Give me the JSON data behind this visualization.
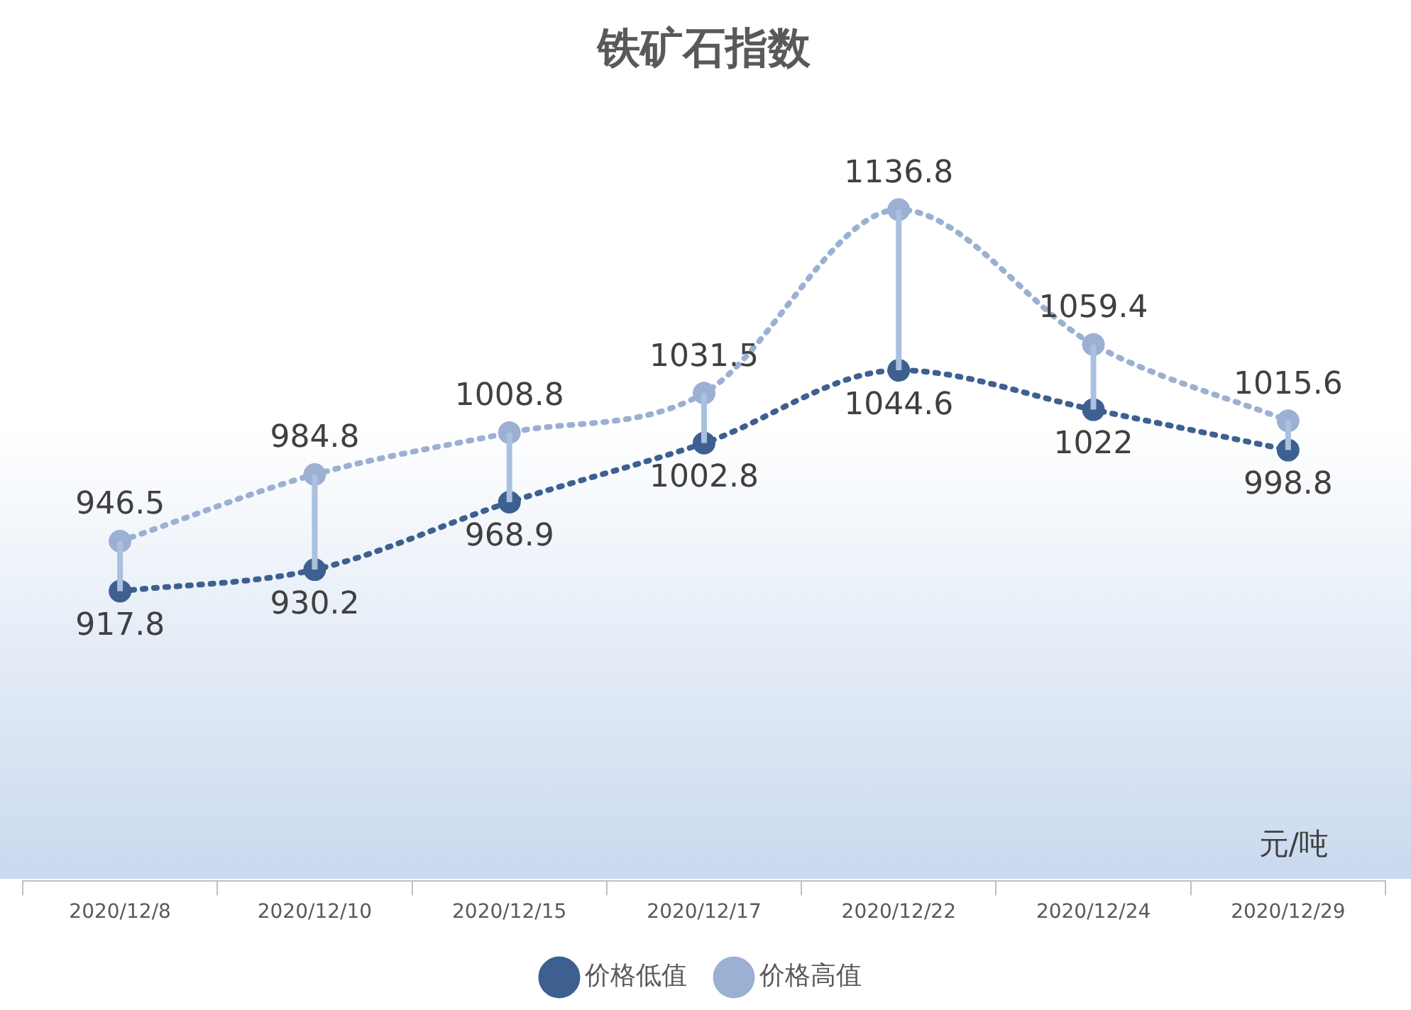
{
  "chart_data": {
    "type": "line",
    "title": "铁矿石指数",
    "categories": [
      "2020/12/8",
      "2020/12/10",
      "2020/12/15",
      "2020/12/17",
      "2020/12/22",
      "2020/12/24",
      "2020/12/29"
    ],
    "series": [
      {
        "name": "价格低值",
        "color": "#3d6090",
        "values": [
          917.8,
          930.2,
          968.9,
          1002.8,
          1044.6,
          1022,
          998.8
        ]
      },
      {
        "name": "价格高值",
        "color": "#9bb0d3",
        "values": [
          946.5,
          984.8,
          1008.8,
          1031.5,
          1136.8,
          1059.4,
          1015.6
        ]
      }
    ],
    "annotations": [
      "元/吨"
    ],
    "data_labels": true,
    "legend": "bottom",
    "grid": false,
    "marker": "circle",
    "line_style": "dotted"
  }
}
